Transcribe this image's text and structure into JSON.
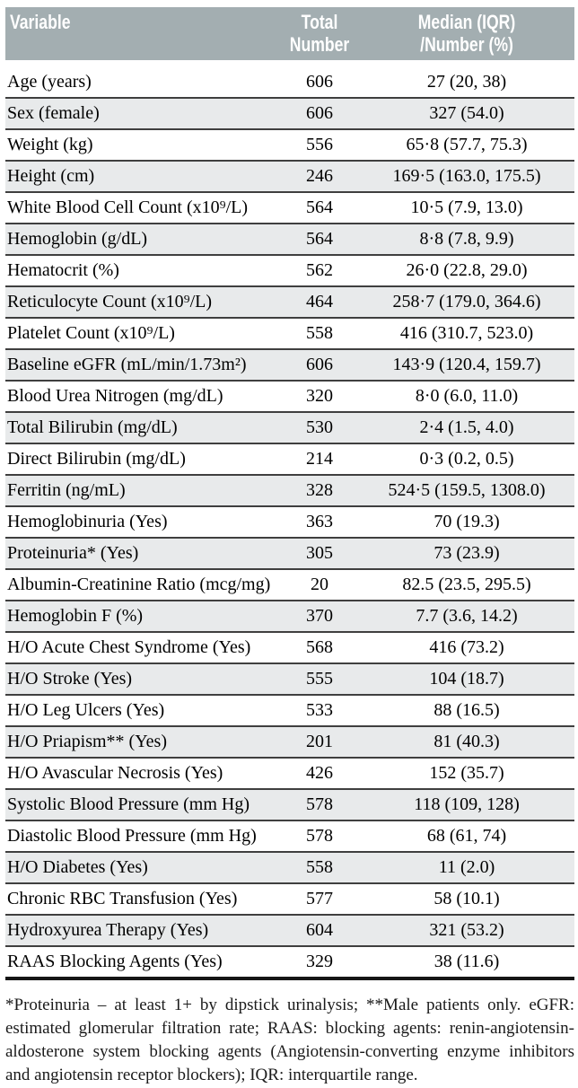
{
  "table": {
    "header": {
      "col_variable": "Variable",
      "col_total_line1": "Total",
      "col_total_line2": "Number",
      "col_median_line1": "Median (IQR)",
      "col_median_line2": "/Number (%)"
    },
    "rows": [
      {
        "variable": "Age (years)",
        "total": "606",
        "value": "27 (20, 38)"
      },
      {
        "variable": "Sex (female)",
        "total": "606",
        "value": "327 (54.0)"
      },
      {
        "variable": "Weight (kg)",
        "total": "556",
        "value": "65·8 (57.7, 75.3)"
      },
      {
        "variable": "Height (cm)",
        "total": "246",
        "value": "169·5 (163.0, 175.5)"
      },
      {
        "variable": "White Blood Cell Count (x10⁹/L)",
        "total": "564",
        "value": "10·5 (7.9, 13.0)"
      },
      {
        "variable": "Hemoglobin (g/dL)",
        "total": "564",
        "value": "8·8 (7.8, 9.9)"
      },
      {
        "variable": "Hematocrit (%)",
        "total": "562",
        "value": "26·0 (22.8, 29.0)"
      },
      {
        "variable": "Reticulocyte Count (x10⁹/L)",
        "total": "464",
        "value": "258·7 (179.0, 364.6)"
      },
      {
        "variable": "Platelet Count (x10⁹/L)",
        "total": "558",
        "value": "416 (310.7, 523.0)"
      },
      {
        "variable": "Baseline eGFR (mL/min/1.73m²)",
        "total": "606",
        "value": "143·9 (120.4, 159.7)"
      },
      {
        "variable": "Blood Urea Nitrogen (mg/dL)",
        "total": "320",
        "value": "8·0 (6.0, 11.0)"
      },
      {
        "variable": "Total Bilirubin (mg/dL)",
        "total": "530",
        "value": "2·4 (1.5, 4.0)"
      },
      {
        "variable": "Direct Bilirubin (mg/dL)",
        "total": "214",
        "value": "0·3 (0.2, 0.5)"
      },
      {
        "variable": "Ferritin (ng/mL)",
        "total": "328",
        "value": "524·5 (159.5, 1308.0)"
      },
      {
        "variable": "Hemoglobinuria (Yes)",
        "total": "363",
        "value": "70 (19.3)"
      },
      {
        "variable": "Proteinuria* (Yes)",
        "total": "305",
        "value": "73 (23.9)"
      },
      {
        "variable": "Albumin-Creatinine Ratio (mcg/mg)",
        "total": "20",
        "value": "82.5 (23.5, 295.5)"
      },
      {
        "variable": "Hemoglobin F (%)",
        "total": "370",
        "value": "7.7 (3.6, 14.2)"
      },
      {
        "variable": "H/O Acute Chest Syndrome (Yes)",
        "total": "568",
        "value": "416 (73.2)"
      },
      {
        "variable": "H/O Stroke (Yes)",
        "total": "555",
        "value": "104 (18.7)"
      },
      {
        "variable": "H/O Leg Ulcers (Yes)",
        "total": "533",
        "value": "88 (16.5)"
      },
      {
        "variable": "H/O Priapism** (Yes)",
        "total": "201",
        "value": "81 (40.3)"
      },
      {
        "variable": "H/O Avascular Necrosis (Yes)",
        "total": "426",
        "value": "152 (35.7)"
      },
      {
        "variable": "Systolic Blood Pressure (mm Hg)",
        "total": "578",
        "value": "118 (109, 128)"
      },
      {
        "variable": "Diastolic Blood Pressure (mm Hg)",
        "total": "578",
        "value": "68 (61, 74)"
      },
      {
        "variable": "H/O Diabetes (Yes)",
        "total": "558",
        "value": "11 (2.0)"
      },
      {
        "variable": "Chronic RBC Transfusion (Yes)",
        "total": "577",
        "value": "58 (10.1)"
      },
      {
        "variable": "Hydroxyurea Therapy (Yes)",
        "total": "604",
        "value": "321 (53.2)"
      },
      {
        "variable": "RAAS Blocking Agents (Yes)",
        "total": "329",
        "value": "38 (11.6)"
      }
    ]
  },
  "footnote": "*Proteinuria – at least 1+ by dipstick urinalysis; **Male patients only. eGFR: estimated glomerular filtration rate; RAAS: blocking agents: renin-angiotensin-aldosterone system blocking agents (Angiotensin-converting enzyme inhibitors and angiotensin receptor blockers); IQR: interquartile range.",
  "colors": {
    "header_bg": "#a3aeb1",
    "header_text": "#ffffff",
    "row_shaded": "#e8eaeb",
    "row_separator": "#3f3f3f",
    "table_bottom_border": "#151515",
    "body_text": "#000000"
  }
}
